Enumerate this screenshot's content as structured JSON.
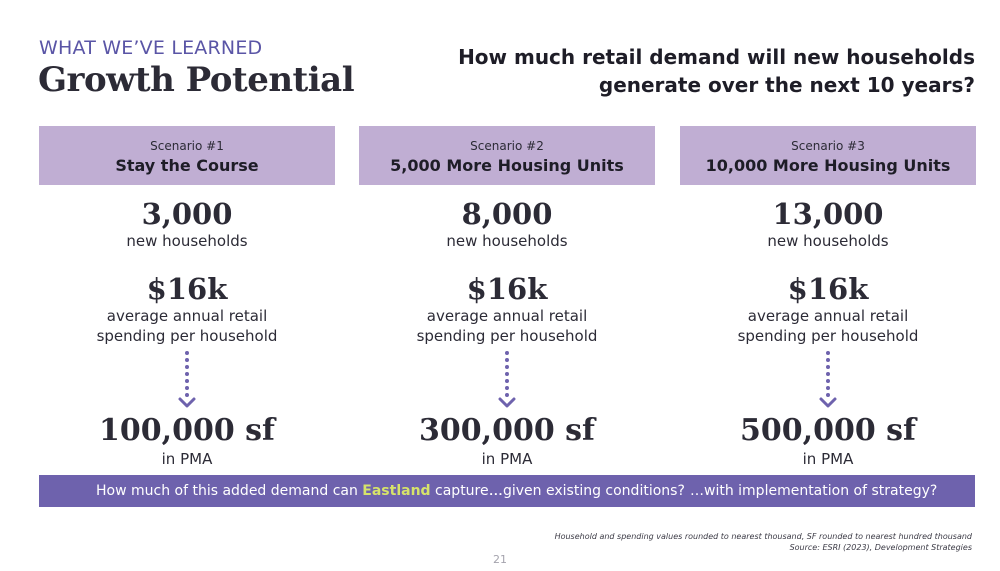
{
  "header": {
    "eyebrow": "WHAT WE’VE LEARNED",
    "title": "Growth Potential",
    "question_line1": "How much retail demand will new households",
    "question_line2": "generate over the next 10 years?"
  },
  "scenarios": [
    {
      "number": "Scenario #1",
      "name": "Stay the Course",
      "households": "3,000",
      "households_label": "new households",
      "spending": "$16k",
      "spending_label_line1": "average annual retail",
      "spending_label_line2": "spending per household",
      "square_feet": "100,000 sf",
      "square_feet_label": "in PMA"
    },
    {
      "number": "Scenario #2",
      "name": "5,000 More Housing Units",
      "households": "8,000",
      "households_label": "new households",
      "spending": "$16k",
      "spending_label_line1": "average annual retail",
      "spending_label_line2": "spending per household",
      "square_feet": "300,000 sf",
      "square_feet_label": "in PMA"
    },
    {
      "number": "Scenario #3",
      "name": "10,000 More Housing Units",
      "households": "13,000",
      "households_label": "new households",
      "spending": "$16k",
      "spending_label_line1": "average annual retail",
      "spending_label_line2": "spending per household",
      "square_feet": "500,000 sf",
      "square_feet_label": "in PMA"
    }
  ],
  "banner": {
    "part1_before": "How much of this added demand can ",
    "part1_highlight": "Eastland",
    "part1_after": " capture…",
    "part2": "…given existing conditions?",
    "part3": "…with implementation of strategy?"
  },
  "footnote": {
    "line1": "Household and spending values rounded to nearest thousand, SF rounded to nearest hundred thousand",
    "line2": "Source: ESRI (2023), Development Strategies"
  },
  "page_number": "21",
  "colors": {
    "accent_purple": "#5a55a6",
    "header_lavender": "#c0aed3",
    "banner_purple": "#6e62ad",
    "highlight_green": "#d6e36a",
    "arrow_purple": "#6e62ad"
  },
  "icons": {
    "arrow": "dotted-down-arrow-icon"
  }
}
